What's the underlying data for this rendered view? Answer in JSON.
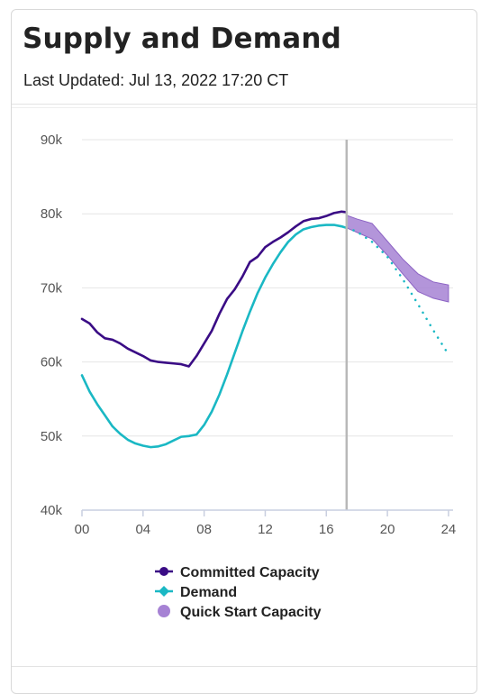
{
  "header": {
    "title": "Supply and Demand",
    "last_updated": "Last Updated: Jul 13, 2022 17:20 CT"
  },
  "colors": {
    "committed": "#3a0c85",
    "demand": "#1ab8c4",
    "quick_start": "#a682d4",
    "now_line": "#b8b8b8",
    "grid": "#e6e6e6"
  },
  "chart_data": {
    "type": "line",
    "title": "",
    "xlabel": "",
    "ylabel": "",
    "xlim": [
      0,
      24.3
    ],
    "ylim": [
      40000,
      90000
    ],
    "x_ticks": [
      0,
      4,
      8,
      12,
      16,
      20,
      24
    ],
    "x_tick_labels": [
      "00",
      "04",
      "08",
      "12",
      "16",
      "20",
      "24"
    ],
    "y_ticks": [
      40000,
      50000,
      60000,
      70000,
      80000,
      90000
    ],
    "y_tick_labels": [
      "40k",
      "50k",
      "60k",
      "70k",
      "80k",
      "90k"
    ],
    "current_time": 17.33,
    "legend_position": "bottom",
    "series": [
      {
        "name": "Committed Capacity",
        "key": "committed",
        "style": "solid",
        "x": [
          0,
          0.5,
          1,
          1.5,
          2,
          2.5,
          3,
          3.5,
          4,
          4.5,
          5,
          5.5,
          6,
          6.5,
          7,
          7.5,
          8,
          8.5,
          9,
          9.5,
          10,
          10.5,
          11,
          11.5,
          12,
          12.5,
          13,
          13.5,
          14,
          14.5,
          15,
          15.5,
          16,
          16.5,
          17,
          17.33
        ],
        "y": [
          65800,
          65200,
          64000,
          63200,
          63000,
          62500,
          61800,
          61300,
          60800,
          60200,
          60000,
          59900,
          59800,
          59700,
          59400,
          60800,
          62500,
          64200,
          66500,
          68500,
          69800,
          71500,
          73500,
          74200,
          75500,
          76200,
          76800,
          77500,
          78300,
          79000,
          79300,
          79400,
          79700,
          80100,
          80300,
          80200
        ]
      },
      {
        "name": "Demand",
        "key": "demand",
        "style": "solid",
        "x": [
          0,
          0.5,
          1,
          1.5,
          2,
          2.5,
          3,
          3.5,
          4,
          4.5,
          5,
          5.5,
          6,
          6.5,
          7,
          7.5,
          8,
          8.5,
          9,
          9.5,
          10,
          10.5,
          11,
          11.5,
          12,
          12.5,
          13,
          13.5,
          14,
          14.5,
          15,
          15.5,
          16,
          16.5,
          17,
          17.33
        ],
        "y": [
          58200,
          56000,
          54300,
          52800,
          51300,
          50300,
          49500,
          49000,
          48700,
          48500,
          48600,
          48900,
          49400,
          49900,
          50000,
          50200,
          51500,
          53300,
          55600,
          58300,
          61200,
          64100,
          66800,
          69300,
          71400,
          73200,
          74800,
          76200,
          77200,
          77900,
          78200,
          78400,
          78500,
          78500,
          78300,
          78100
        ]
      },
      {
        "name": "Demand Forecast",
        "key": "demand",
        "style": "dotted",
        "x": [
          17.33,
          18,
          19,
          20,
          21,
          22,
          23,
          24
        ],
        "y": [
          78100,
          77600,
          76200,
          74200,
          71200,
          67800,
          64300,
          61000
        ]
      },
      {
        "name": "Quick Start Capacity",
        "key": "quick_start",
        "style": "band",
        "x": [
          17.33,
          18,
          19,
          20,
          21,
          22,
          23,
          24
        ],
        "upper": [
          79800,
          79300,
          78700,
          76300,
          73900,
          71900,
          70800,
          70400
        ],
        "lower": [
          78100,
          77500,
          76600,
          74400,
          71900,
          69500,
          68600,
          68100
        ]
      }
    ]
  },
  "legend": [
    {
      "label": "Committed Capacity",
      "key": "committed",
      "marker": "dot-line"
    },
    {
      "label": "Demand",
      "key": "demand",
      "marker": "diamond-line"
    },
    {
      "label": "Quick Start Capacity",
      "key": "quick_start",
      "marker": "circle"
    }
  ]
}
